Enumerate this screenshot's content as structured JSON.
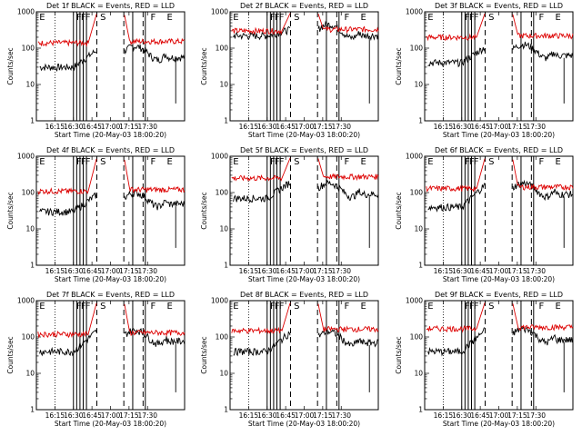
{
  "chart_data": [
    {
      "type": "line",
      "title": "Det 1f BLACK = Events, RED = LLD",
      "black_base": 30,
      "red_base": 140,
      "black_peak": 90,
      "black_mid": 80,
      "red_jump": false
    },
    {
      "type": "line",
      "title": "Det 2f BLACK = Events, RED = LLD",
      "black_base": 220,
      "red_base": 300,
      "black_peak": 330,
      "black_mid": 320,
      "red_jump": true
    },
    {
      "type": "line",
      "title": "Det 3f BLACK = Events, RED = LLD",
      "black_base": 40,
      "red_base": 200,
      "black_peak": 110,
      "black_mid": 90,
      "red_jump": false
    },
    {
      "type": "line",
      "title": "Det 4f BLACK = Events, RED = LLD",
      "black_base": 30,
      "red_base": 110,
      "black_peak": 90,
      "black_mid": 70,
      "red_jump": false
    },
    {
      "type": "line",
      "title": "Det 5f BLACK = Events, RED = LLD",
      "black_base": 70,
      "red_base": 250,
      "black_peak": 200,
      "black_mid": 130,
      "red_jump": true
    },
    {
      "type": "line",
      "title": "Det 6f BLACK = Events, RED = LLD",
      "black_base": 40,
      "red_base": 130,
      "black_peak": 170,
      "black_mid": 130,
      "red_jump": false
    },
    {
      "type": "line",
      "title": "Det 7f BLACK = Events, RED = LLD",
      "black_base": 40,
      "red_base": 120,
      "black_peak": 150,
      "black_mid": 110,
      "red_jump": false
    },
    {
      "type": "line",
      "title": "Det 8f BLACK = Events, RED = LLD",
      "black_base": 40,
      "red_base": 150,
      "black_peak": 140,
      "black_mid": 100,
      "red_jump": false
    },
    {
      "type": "line",
      "title": "Det 9f BLACK = Events, RED = LLD",
      "black_base": 40,
      "red_base": 170,
      "black_peak": 160,
      "black_mid": 120,
      "red_jump": false
    }
  ],
  "shared": {
    "x_range": [
      0,
      1
    ],
    "ylim": [
      1,
      1000
    ],
    "ylabel": "Counts/sec",
    "xlabel": "Start Time (20-May-03 18:00:20)",
    "x_tick_labels": [
      "16:15",
      "16:30",
      "16:45",
      "17:00",
      "17:15",
      "17:30"
    ],
    "y_tick_labels": [
      "1",
      "10",
      "100",
      "1000"
    ],
    "y_tick_values": [
      1,
      10,
      100,
      1000
    ],
    "marker_labels": [
      "E",
      "F",
      "F",
      "F",
      "S",
      "F",
      "E"
    ],
    "colors": {
      "events": "#000000",
      "lld": "#dd0000"
    }
  }
}
